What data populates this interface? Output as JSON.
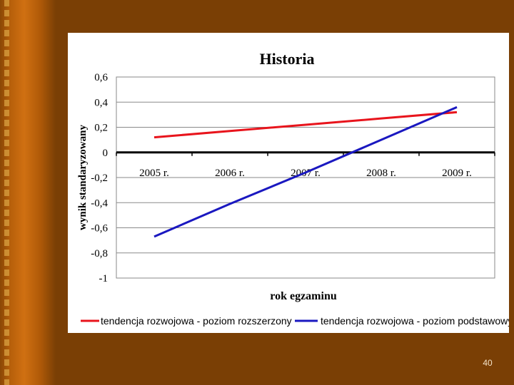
{
  "slide": {
    "page_number": "40"
  },
  "colors": {
    "background": "#7a3f05",
    "panel": "#ffffff",
    "series_red": "#e8141c",
    "series_blue": "#1a18c0"
  },
  "chart_data": {
    "type": "line",
    "title": "Historia",
    "xlabel": "rok egzaminu",
    "ylabel": "wynik standaryzowany",
    "categories": [
      "2005 r.",
      "2006 r.",
      "2007 r.",
      "2008 r.",
      "2009 r."
    ],
    "ylim": [
      -1,
      0.6
    ],
    "yticks": [
      "0,6",
      "0,4",
      "0,2",
      "0",
      "-0,2",
      "-0,4",
      "-0,6",
      "-0,8",
      "-1"
    ],
    "ytick_values": [
      0.6,
      0.4,
      0.2,
      0,
      -0.2,
      -0.4,
      -0.6,
      -0.8,
      -1
    ],
    "grid": true,
    "legend_position": "bottom",
    "series": [
      {
        "name": "tendencja rozwojowa - poziom rozszerzony",
        "color": "#e8141c",
        "values": [
          0.12,
          0.17,
          0.22,
          0.27,
          0.32
        ]
      },
      {
        "name": "tendencja rozwojowa - poziom podstawowy",
        "color": "#1a18c0",
        "values": [
          -0.67,
          -0.41,
          -0.16,
          0.1,
          0.36
        ]
      }
    ]
  }
}
